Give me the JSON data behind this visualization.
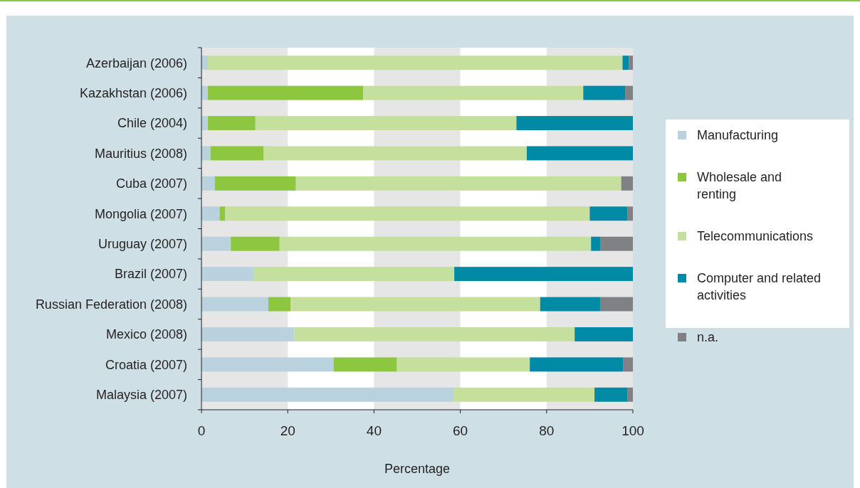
{
  "chart_data": {
    "type": "bar",
    "orientation": "horizontal",
    "stacked": true,
    "xlabel": "Percentage",
    "categories": [
      "Azerbaijan (2006)",
      "Kazakhstan (2006)",
      "Chile (2004)",
      "Mauritius (2008)",
      "Cuba (2007)",
      "Mongolia (2007)",
      "Uruguay (2007)",
      "Brazil (2007)",
      "Russian Federation (2008)",
      "Mexico (2008)",
      "Croatia (2007)",
      "Malaysia (2007)"
    ],
    "series": [
      {
        "name": "Manufacturing",
        "color": "#b9d2de",
        "values": [
          1.5,
          1.5,
          1.5,
          2.1,
          3.1,
          4.2,
          6.8,
          12.1,
          15.5,
          21.5,
          30.6,
          58.4
        ]
      },
      {
        "name": "Wholesale and renting",
        "color": "#8dc63f",
        "values": [
          0,
          36.0,
          11.0,
          12.3,
          18.8,
          1.3,
          11.3,
          0,
          5.2,
          0,
          14.7,
          0
        ]
      },
      {
        "name": "Telecommunications",
        "color": "#c5df9d",
        "values": [
          96.1,
          51.0,
          60.5,
          61.0,
          75.4,
          84.5,
          72.2,
          46.5,
          57.8,
          65.0,
          30.8,
          32.7
        ]
      },
      {
        "name": "Computer and related activities",
        "color": "#008aa5",
        "values": [
          1.5,
          9.7,
          27.0,
          24.6,
          0,
          8.7,
          2.1,
          41.4,
          13.9,
          13.5,
          21.6,
          7.6
        ]
      },
      {
        "name": "n.a.",
        "color": "#808184",
        "values": [
          0.9,
          1.8,
          0,
          0,
          2.7,
          1.3,
          7.6,
          0,
          7.6,
          0,
          2.3,
          1.3
        ]
      }
    ],
    "xlim": [
      0,
      100
    ],
    "xticks": [
      0,
      20,
      40,
      60,
      80,
      100
    ],
    "bands": [
      {
        "axis": "x",
        "from": 0,
        "to": 20,
        "color": "#e6e6e6"
      },
      {
        "axis": "x",
        "from": 40,
        "to": 60,
        "color": "#e6e6e6"
      },
      {
        "axis": "x",
        "from": 80,
        "to": 100,
        "color": "#e6e6e6"
      }
    ],
    "legend": "right"
  }
}
